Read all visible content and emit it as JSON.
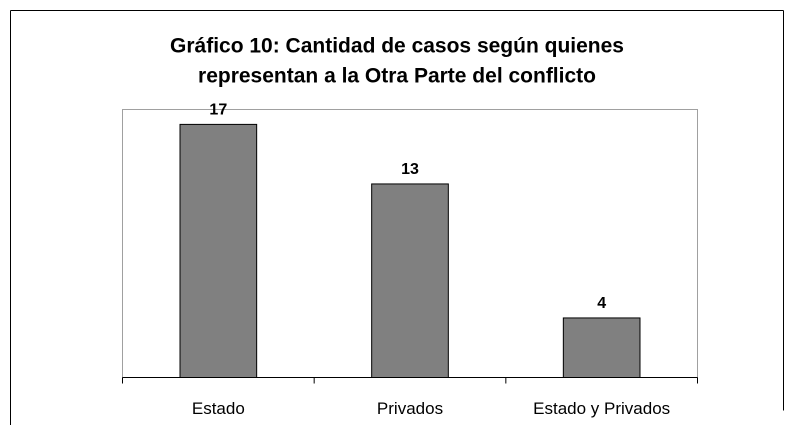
{
  "chart_data": {
    "type": "bar",
    "title": [
      "Gráfico 10: Cantidad de casos según quienes",
      "representan a la Otra Parte del conflicto"
    ],
    "categories": [
      "Estado",
      "Privados",
      "Estado y Privados"
    ],
    "values": [
      17,
      13,
      4
    ],
    "color": "#808080",
    "ylim": [
      0,
      18
    ]
  }
}
